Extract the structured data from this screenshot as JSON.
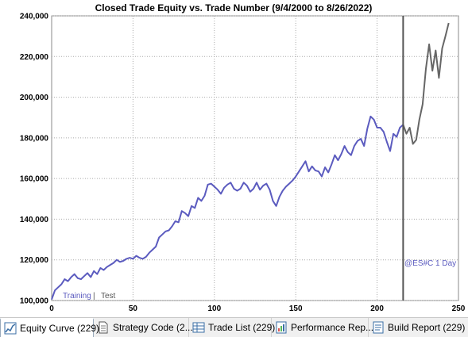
{
  "chart_data": {
    "type": "line",
    "title": "Closed Trade Equity vs. Trade Number (9/4/2000 to 8/26/2022)",
    "xlabel": "",
    "ylabel": "",
    "xlim": [
      0,
      250
    ],
    "ylim": [
      100000,
      240000
    ],
    "x_ticks": [
      0,
      50,
      100,
      150,
      200,
      250
    ],
    "x_tick_labels": [
      "0",
      "50",
      "100",
      "150",
      "200",
      "250"
    ],
    "y_ticks": [
      100000,
      120000,
      140000,
      160000,
      180000,
      200000,
      220000,
      240000
    ],
    "y_tick_labels": [
      "100,000",
      "120,000",
      "140,000",
      "160,000",
      "180,000",
      "200,000",
      "220,000",
      "240,000"
    ],
    "grid": true,
    "split_x": 216,
    "annotations": {
      "training": "Training",
      "separator": " | ",
      "test": "Test",
      "symbol": "@ES#C 1 Day"
    },
    "colors": {
      "training": "#5b5bbf",
      "test": "#666666",
      "split_line": "#555555",
      "grid": "#aaaaaa"
    },
    "series": [
      {
        "name": "Training",
        "x": [
          0,
          2,
          4,
          6,
          8,
          10,
          12,
          14,
          16,
          18,
          20,
          22,
          24,
          26,
          28,
          30,
          32,
          34,
          36,
          38,
          40,
          42,
          44,
          46,
          48,
          50,
          52,
          54,
          56,
          58,
          60,
          62,
          64,
          66,
          68,
          70,
          72,
          74,
          76,
          78,
          80,
          82,
          84,
          86,
          88,
          90,
          92,
          94,
          96,
          98,
          100,
          102,
          104,
          106,
          108,
          110,
          112,
          114,
          116,
          118,
          120,
          122,
          124,
          126,
          128,
          130,
          132,
          134,
          136,
          138,
          140,
          142,
          144,
          146,
          148,
          150,
          152,
          154,
          156,
          158,
          160,
          162,
          164,
          166,
          168,
          170,
          172,
          174,
          176,
          178,
          180,
          182,
          184,
          186,
          188,
          190,
          192,
          194,
          196,
          198,
          200,
          202,
          204,
          206,
          208,
          210,
          212,
          214,
          216
        ],
        "y": [
          100500,
          105000,
          106500,
          108000,
          110500,
          109500,
          111500,
          113000,
          111000,
          110500,
          112000,
          113500,
          111500,
          114500,
          113000,
          116000,
          115000,
          116500,
          117500,
          118500,
          120000,
          119000,
          119500,
          120500,
          121000,
          120500,
          122000,
          121000,
          120500,
          121500,
          123500,
          125000,
          126500,
          131000,
          132500,
          134000,
          134500,
          136500,
          139000,
          138500,
          144000,
          143000,
          141500,
          146500,
          145500,
          150500,
          149000,
          151500,
          157000,
          157500,
          156000,
          154500,
          152500,
          155500,
          157000,
          158000,
          155000,
          154000,
          155000,
          158000,
          156500,
          153500,
          155000,
          158000,
          154500,
          156500,
          157500,
          154500,
          149000,
          146500,
          151000,
          154000,
          156000,
          157500,
          159000,
          161000,
          163500,
          166000,
          168500,
          163500,
          166000,
          164000,
          163500,
          161000,
          165500,
          163000,
          167000,
          171500,
          169000,
          172000,
          176000,
          173000,
          171500,
          176000,
          178500,
          179500,
          176000,
          184500,
          190500,
          189000,
          185000,
          185000,
          183000,
          178000,
          173500,
          182000,
          180500,
          185000,
          186500
        ]
      },
      {
        "name": "Test",
        "x": [
          216,
          218,
          220,
          222,
          224,
          226,
          228,
          230,
          232,
          234,
          236,
          238,
          240,
          242,
          244
        ],
        "y": [
          186500,
          182000,
          185000,
          177000,
          179000,
          189000,
          196500,
          214000,
          226000,
          213000,
          223000,
          209500,
          224000,
          230000,
          236500
        ]
      }
    ]
  },
  "tabs": [
    {
      "label": "Equity Curve (229)",
      "active": true,
      "icon": "equity-curve-icon"
    },
    {
      "label": "Strategy Code (2...",
      "active": false,
      "icon": "document-icon"
    },
    {
      "label": "Trade List (229)",
      "active": false,
      "icon": "table-icon"
    },
    {
      "label": "Performance Rep...",
      "active": false,
      "icon": "performance-report-icon"
    },
    {
      "label": "Build Report (229)",
      "active": false,
      "icon": "build-report-icon"
    }
  ]
}
